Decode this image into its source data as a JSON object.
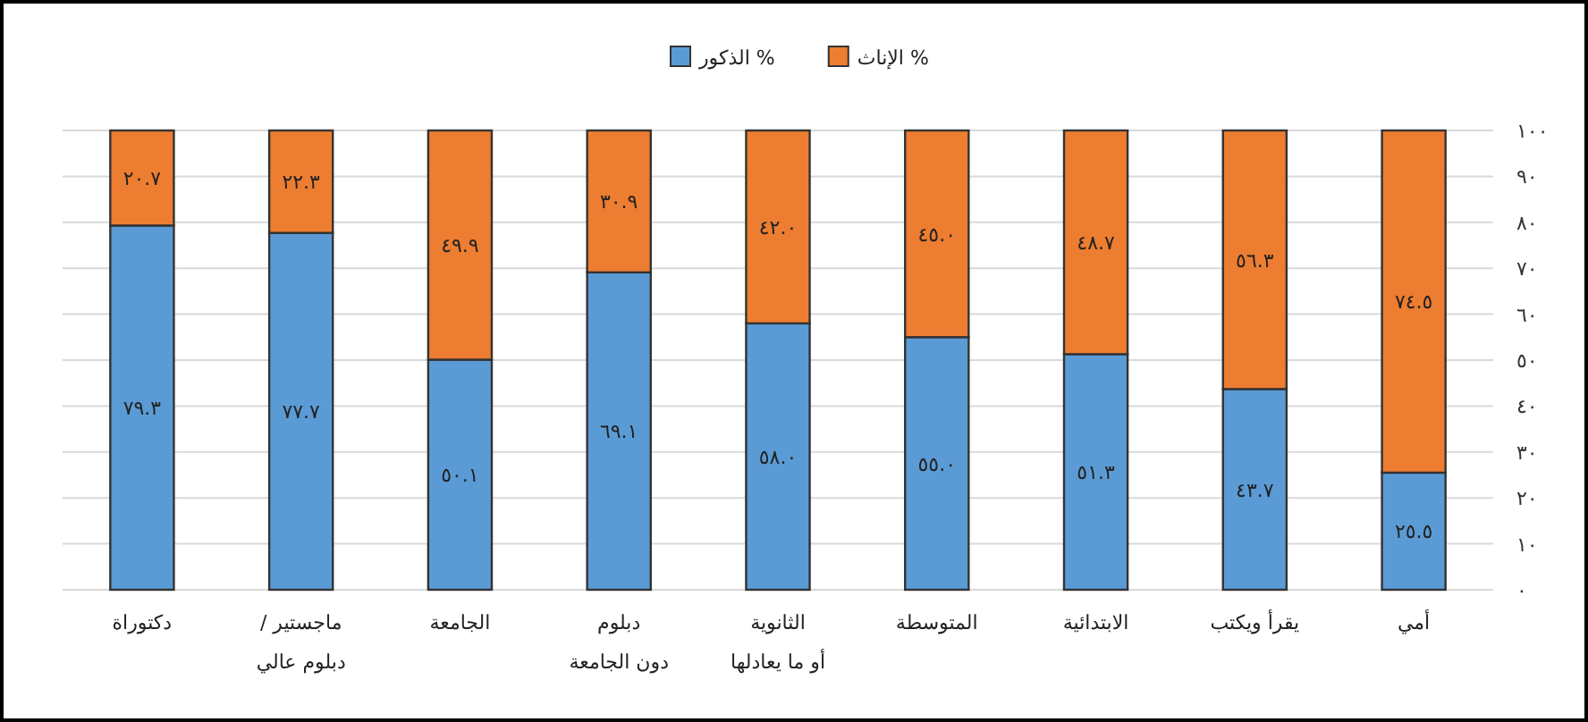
{
  "chart_data": {
    "type": "bar",
    "stacked": true,
    "legend": "top",
    "grid": "y",
    "categories": [
      "دكتوراة",
      "ماجستير /\nدبلوم عالي",
      "الجامعة",
      "دبلوم\nدون الجامعة",
      "الثانوية\nأو ما يعادلها",
      "المتوسطة",
      "الابتدائية",
      "يقرأ ويكتب",
      "أمي"
    ],
    "series": [
      {
        "name": "% الذكور",
        "color": "#5b9bd5",
        "values": [
          79.3,
          77.7,
          50.1,
          69.1,
          58.0,
          55.0,
          51.3,
          43.7,
          25.5
        ],
        "value_labels": [
          "٧٩.٣",
          "٧٧.٧",
          "٥٠.١",
          "٦٩.١",
          "٥٨.٠",
          "٥٥.٠",
          "٥١.٣",
          "٤٣.٧",
          "٢٥.٥"
        ]
      },
      {
        "name": "% الإناث",
        "color": "#ed7d31",
        "values": [
          20.7,
          22.3,
          49.9,
          30.9,
          42.0,
          45.0,
          48.7,
          56.3,
          74.5
        ],
        "value_labels": [
          "٢٠.٧",
          "٢٢.٣",
          "٤٩.٩",
          "٣٠.٩",
          "٤٢.٠",
          "٤٥.٠",
          "٤٨.٧",
          "٥٦.٣",
          "٧٤.٥"
        ]
      }
    ],
    "ylim": [
      0,
      100
    ],
    "yticks": [
      {
        "value": 0,
        "label": "٠"
      },
      {
        "value": 10,
        "label": "١٠"
      },
      {
        "value": 20,
        "label": "٢٠"
      },
      {
        "value": 30,
        "label": "٣٠"
      },
      {
        "value": 40,
        "label": "٤٠"
      },
      {
        "value": 50,
        "label": "٥٠"
      },
      {
        "value": 60,
        "label": "٦٠"
      },
      {
        "value": 70,
        "label": "٧٠"
      },
      {
        "value": 80,
        "label": "٨٠"
      },
      {
        "value": 90,
        "label": "٩٠"
      },
      {
        "value": 100,
        "label": "١٠٠"
      }
    ]
  }
}
